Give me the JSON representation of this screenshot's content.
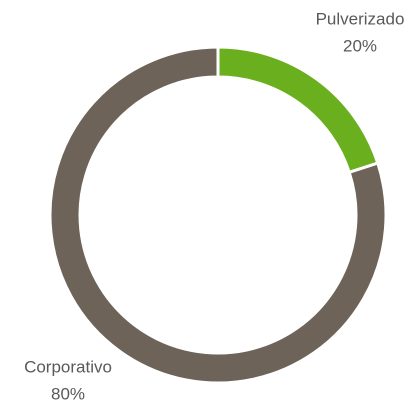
{
  "chart_data": {
    "type": "pie",
    "donut": true,
    "categories": [
      "Pulverizado",
      "Corporativo"
    ],
    "values": [
      20,
      80
    ],
    "value_labels": [
      "20%",
      "80%"
    ],
    "colors": [
      "#6aaf1e",
      "#6e6359"
    ]
  }
}
